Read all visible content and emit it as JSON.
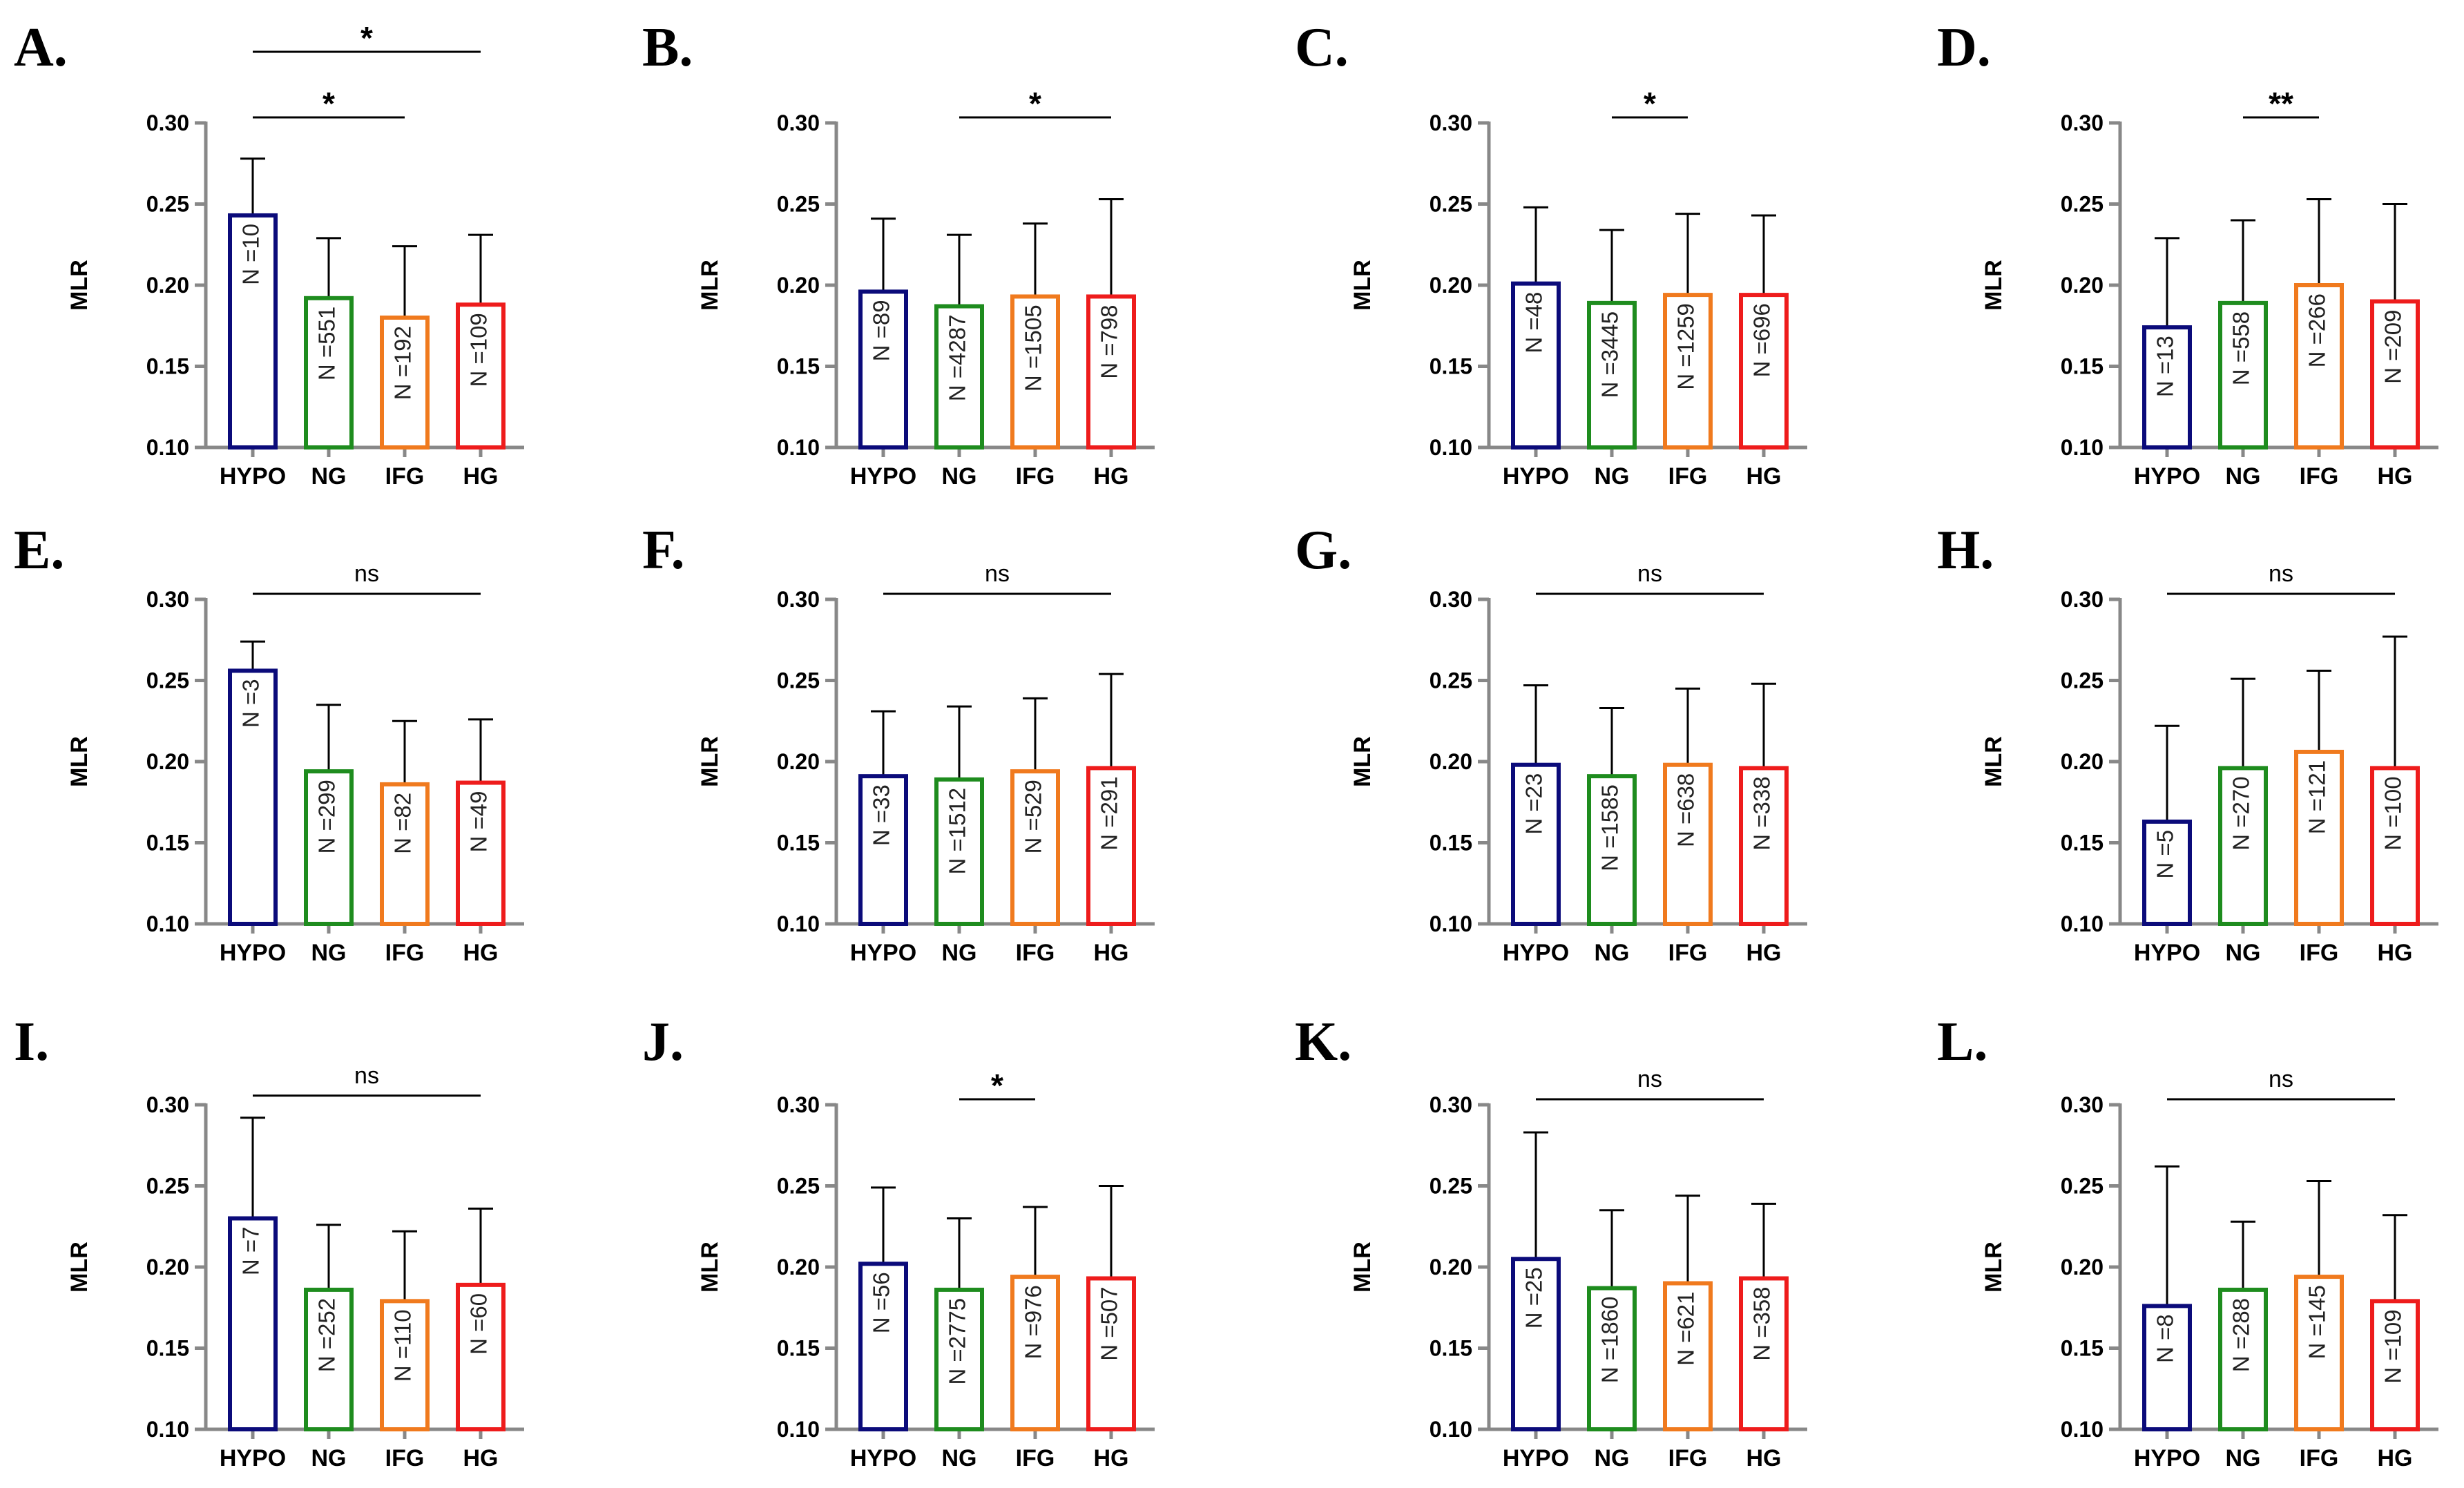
{
  "colors": {
    "HYPO": "#0b0b7a",
    "NG": "#1e8c1e",
    "IFG": "#f07a1e",
    "HG": "#ee1c1c",
    "axis": "#888888",
    "error_bar": "#000000"
  },
  "chart_data": [
    {
      "type": "bar",
      "panel": "A.",
      "categories": [
        "HYPO",
        "NG",
        "IFG",
        "HG"
      ],
      "values": [
        0.243,
        0.192,
        0.18,
        0.188
      ],
      "errors_upper": [
        0.278,
        0.229,
        0.224,
        0.231
      ],
      "n_labels": [
        "N =10",
        "N =551",
        "N =192",
        "N =109"
      ],
      "ylabel": "MLR",
      "ylim": [
        0.1,
        0.3
      ],
      "yticks": [
        "0.10",
        "0.15",
        "0.20",
        "0.25",
        "0.30"
      ],
      "comparisons": [
        {
          "from": "HYPO",
          "to": "IFG",
          "label": "*"
        },
        {
          "from": "HYPO",
          "to": "HG",
          "label": "*"
        }
      ]
    },
    {
      "type": "bar",
      "panel": "B.",
      "categories": [
        "HYPO",
        "NG",
        "IFG",
        "HG"
      ],
      "values": [
        0.196,
        0.187,
        0.193,
        0.193
      ],
      "errors_upper": [
        0.241,
        0.231,
        0.238,
        0.253
      ],
      "n_labels": [
        "N =89",
        "N =4287",
        "N =1505",
        "N =798"
      ],
      "ylabel": "MLR",
      "ylim": [
        0.1,
        0.3
      ],
      "yticks": [
        "0.10",
        "0.15",
        "0.20",
        "0.25",
        "0.30"
      ],
      "comparisons": [
        {
          "from": "NG",
          "to": "HG",
          "label": "*"
        }
      ]
    },
    {
      "type": "bar",
      "panel": "C.",
      "categories": [
        "HYPO",
        "NG",
        "IFG",
        "HG"
      ],
      "values": [
        0.201,
        0.189,
        0.194,
        0.194
      ],
      "errors_upper": [
        0.248,
        0.234,
        0.244,
        0.243
      ],
      "n_labels": [
        "N =48",
        "N =3445",
        "N =1259",
        "N =696"
      ],
      "ylabel": "MLR",
      "ylim": [
        0.1,
        0.3
      ],
      "yticks": [
        "0.10",
        "0.15",
        "0.20",
        "0.25",
        "0.30"
      ],
      "comparisons": [
        {
          "from": "NG",
          "to": "IFG",
          "label": "*"
        }
      ]
    },
    {
      "type": "bar",
      "panel": "D.",
      "categories": [
        "HYPO",
        "NG",
        "IFG",
        "HG"
      ],
      "values": [
        0.174,
        0.189,
        0.2,
        0.19
      ],
      "errors_upper": [
        0.229,
        0.24,
        0.253,
        0.25
      ],
      "n_labels": [
        "N =13",
        "N =558",
        "N =266",
        "N =209"
      ],
      "ylabel": "MLR",
      "ylim": [
        0.1,
        0.3
      ],
      "yticks": [
        "0.10",
        "0.15",
        "0.20",
        "0.25",
        "0.30"
      ],
      "comparisons": [
        {
          "from": "NG",
          "to": "IFG",
          "label": "**"
        }
      ]
    },
    {
      "type": "bar",
      "panel": "E.",
      "categories": [
        "HYPO",
        "NG",
        "IFG",
        "HG"
      ],
      "values": [
        0.256,
        0.194,
        0.186,
        0.187
      ],
      "errors_upper": [
        0.274,
        0.235,
        0.225,
        0.226
      ],
      "n_labels": [
        "N =3",
        "N =299",
        "N =82",
        "N =49"
      ],
      "ylabel": "MLR",
      "ylim": [
        0.1,
        0.3
      ],
      "yticks": [
        "0.10",
        "0.15",
        "0.20",
        "0.25",
        "0.30"
      ],
      "comparisons": [
        {
          "from": "HYPO",
          "to": "HG",
          "label": "ns"
        }
      ]
    },
    {
      "type": "bar",
      "panel": "F.",
      "categories": [
        "HYPO",
        "NG",
        "IFG",
        "HG"
      ],
      "values": [
        0.191,
        0.189,
        0.194,
        0.196
      ],
      "errors_upper": [
        0.231,
        0.234,
        0.239,
        0.254
      ],
      "n_labels": [
        "N =33",
        "N =1512",
        "N =529",
        "N =291"
      ],
      "ylabel": "MLR",
      "ylim": [
        0.1,
        0.3
      ],
      "yticks": [
        "0.10",
        "0.15",
        "0.20",
        "0.25",
        "0.30"
      ],
      "comparisons": [
        {
          "from": "HYPO",
          "to": "HG",
          "label": "ns"
        }
      ]
    },
    {
      "type": "bar",
      "panel": "G.",
      "categories": [
        "HYPO",
        "NG",
        "IFG",
        "HG"
      ],
      "values": [
        0.198,
        0.191,
        0.198,
        0.196
      ],
      "errors_upper": [
        0.247,
        0.233,
        0.245,
        0.248
      ],
      "n_labels": [
        "N =23",
        "N =1585",
        "N =638",
        "N =338"
      ],
      "ylabel": "MLR",
      "ylim": [
        0.1,
        0.3
      ],
      "yticks": [
        "0.10",
        "0.15",
        "0.20",
        "0.25",
        "0.30"
      ],
      "comparisons": [
        {
          "from": "HYPO",
          "to": "HG",
          "label": "ns"
        }
      ]
    },
    {
      "type": "bar",
      "panel": "H.",
      "categories": [
        "HYPO",
        "NG",
        "IFG",
        "HG"
      ],
      "values": [
        0.163,
        0.196,
        0.206,
        0.196
      ],
      "errors_upper": [
        0.222,
        0.251,
        0.256,
        0.277
      ],
      "n_labels": [
        "N =5",
        "N =270",
        "N =121",
        "N =100"
      ],
      "ylabel": "MLR",
      "ylim": [
        0.1,
        0.3
      ],
      "yticks": [
        "0.10",
        "0.15",
        "0.20",
        "0.25",
        "0.30"
      ],
      "comparisons": [
        {
          "from": "HYPO",
          "to": "HG",
          "label": "ns"
        }
      ]
    },
    {
      "type": "bar",
      "panel": "I.",
      "categories": [
        "HYPO",
        "NG",
        "IFG",
        "HG"
      ],
      "values": [
        0.23,
        0.186,
        0.179,
        0.189
      ],
      "errors_upper": [
        0.292,
        0.226,
        0.222,
        0.236
      ],
      "n_labels": [
        "N =7",
        "N =252",
        "N =110",
        "N =60"
      ],
      "ylabel": "MLR",
      "ylim": [
        0.1,
        0.3
      ],
      "yticks": [
        "0.10",
        "0.15",
        "0.20",
        "0.25",
        "0.30"
      ],
      "comparisons": [
        {
          "from": "HYPO",
          "to": "HG",
          "label": "ns"
        }
      ]
    },
    {
      "type": "bar",
      "panel": "J.",
      "categories": [
        "HYPO",
        "NG",
        "IFG",
        "HG"
      ],
      "values": [
        0.202,
        0.186,
        0.194,
        0.193
      ],
      "errors_upper": [
        0.249,
        0.23,
        0.237,
        0.25
      ],
      "n_labels": [
        "N =56",
        "N =2775",
        "N =976",
        "N =507"
      ],
      "ylabel": "MLR",
      "ylim": [
        0.1,
        0.3
      ],
      "yticks": [
        "0.10",
        "0.15",
        "0.20",
        "0.25",
        "0.30"
      ],
      "comparisons": [
        {
          "from": "NG",
          "to": "IFG",
          "label": "*"
        }
      ]
    },
    {
      "type": "bar",
      "panel": "K.",
      "categories": [
        "HYPO",
        "NG",
        "IFG",
        "HG"
      ],
      "values": [
        0.205,
        0.187,
        0.19,
        0.193
      ],
      "errors_upper": [
        0.283,
        0.235,
        0.244,
        0.239
      ],
      "n_labels": [
        "N =25",
        "N =1860",
        "N =621",
        "N =358"
      ],
      "ylabel": "MLR",
      "ylim": [
        0.1,
        0.3
      ],
      "yticks": [
        "0.10",
        "0.15",
        "0.20",
        "0.25",
        "0.30"
      ],
      "comparisons": [
        {
          "from": "HYPO",
          "to": "HG",
          "label": "ns"
        }
      ]
    },
    {
      "type": "bar",
      "panel": "L.",
      "categories": [
        "HYPO",
        "NG",
        "IFG",
        "HG"
      ],
      "values": [
        0.176,
        0.186,
        0.194,
        0.179
      ],
      "errors_upper": [
        0.262,
        0.228,
        0.253,
        0.232
      ],
      "n_labels": [
        "N =8",
        "N =288",
        "N =145",
        "N =109"
      ],
      "ylabel": "MLR",
      "ylim": [
        0.1,
        0.3
      ],
      "yticks": [
        "0.10",
        "0.15",
        "0.20",
        "0.25",
        "0.30"
      ],
      "comparisons": [
        {
          "from": "HYPO",
          "to": "HG",
          "label": "ns"
        }
      ]
    }
  ]
}
